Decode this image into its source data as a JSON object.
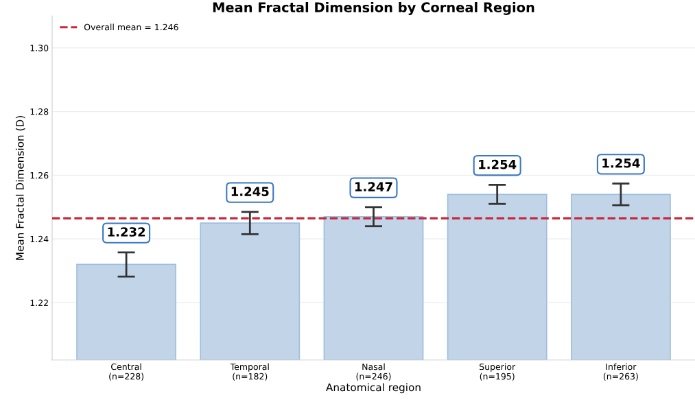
{
  "chart_data": {
    "type": "bar",
    "title": "Mean Fractal Dimension by Corneal Region",
    "xlabel": "Anatomical region",
    "ylabel": "Mean Fractal Dimension (D)",
    "categories": [
      "Central\n(n=228)",
      "Temporal\n(n=182)",
      "Nasal\n(n=246)",
      "Superior\n(n=195)",
      "Inferior\n(n=263)"
    ],
    "values": [
      1.232,
      1.245,
      1.247,
      1.254,
      1.254
    ],
    "errors": [
      0.0038,
      0.0035,
      0.003,
      0.003,
      0.0034
    ],
    "color": "#c2d4e8",
    "data_labels": true,
    "ylim": [
      1.202,
      1.31
    ],
    "yticks": [
      1.22,
      1.24,
      1.26,
      1.28,
      {
        "value": 1.3,
        "label": "1.30"
      }
    ],
    "ref_lines": [
      {
        "axis": "y",
        "value": 1.2465,
        "label": "Overall mean = 1.246",
        "color": "#c8283c",
        "line_style": "dashed"
      }
    ],
    "grid": "y",
    "legend": "top left"
  }
}
